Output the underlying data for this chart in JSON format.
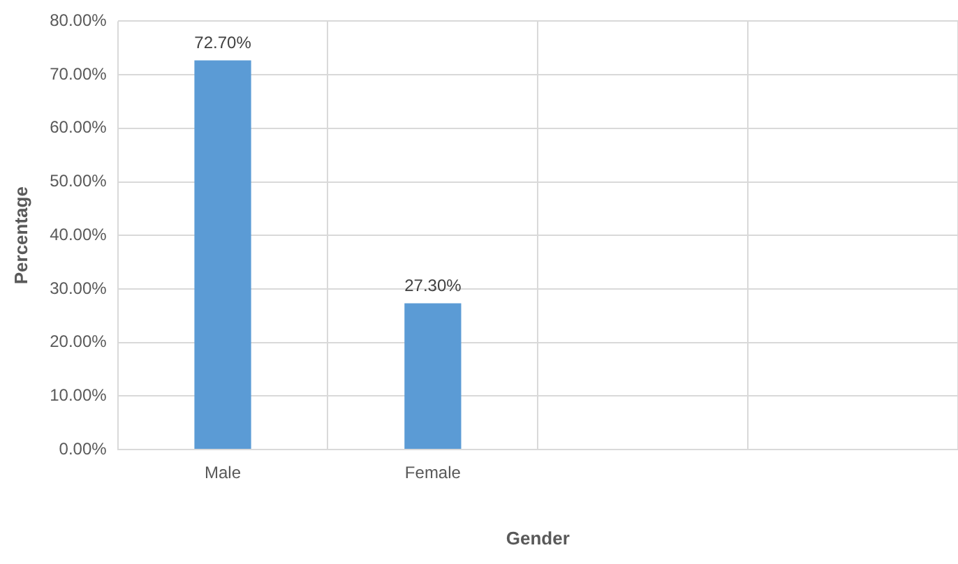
{
  "chart_data": {
    "type": "bar",
    "xlabel": "Gender",
    "ylabel": "Percentage",
    "categories": [
      "Male",
      "Female",
      null,
      null
    ],
    "values": [
      72.7,
      27.3,
      null,
      null
    ],
    "color": "#5b9bd5",
    "value_labels": [
      "72.70%",
      "27.30%",
      null,
      null
    ],
    "ylim": [
      0,
      80
    ],
    "yticks": [
      {
        "value": 0,
        "label": "0.00%"
      },
      {
        "value": 10,
        "label": "10.00%"
      },
      {
        "value": 20,
        "label": "20.00%"
      },
      {
        "value": 30,
        "label": "30.00%"
      },
      {
        "value": 40,
        "label": "40.00%"
      },
      {
        "value": 50,
        "label": "50.00%"
      },
      {
        "value": 60,
        "label": "60.00%"
      },
      {
        "value": 70,
        "label": "70.00%"
      },
      {
        "value": 80,
        "label": "80.00%"
      }
    ],
    "grid": true,
    "legend": false
  }
}
